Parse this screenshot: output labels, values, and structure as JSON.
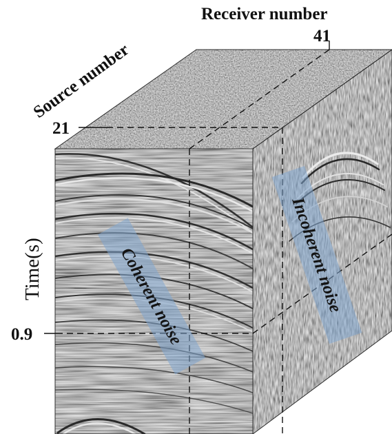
{
  "labels": {
    "receiver_axis": "Receiver number",
    "source_axis": "Source number",
    "time_axis": "Time(s)",
    "receiver_tick": "41",
    "source_tick": "21",
    "time_tick": "0.9"
  },
  "annotations": {
    "coherent": "Coherent noise",
    "incoherent": "Incoherent noise"
  },
  "colors": {
    "band": "#7fa6cf",
    "seismic_base": "#8e8e8e",
    "dashed": "#111111"
  }
}
